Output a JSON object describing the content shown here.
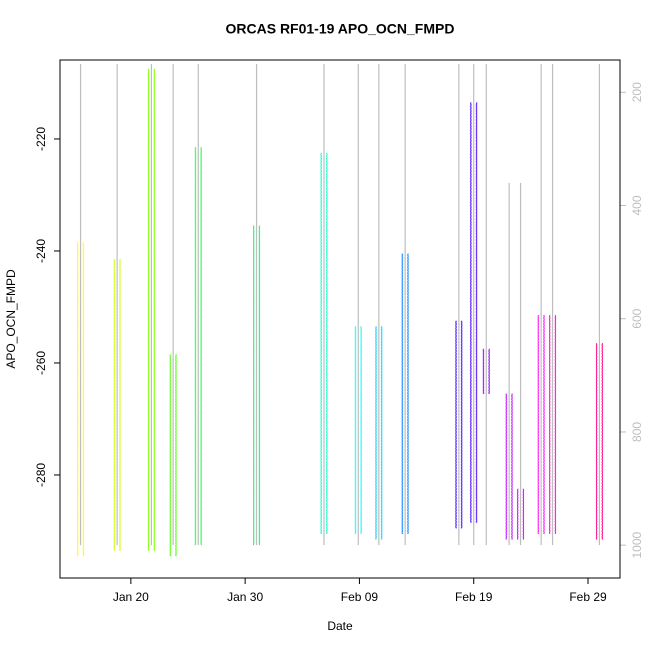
{
  "chart_data": {
    "type": "range",
    "title": "ORCAS RF01-19 APO_OCN_FMPD",
    "xlabel": "Date",
    "ylabel": "APO_OCN_FMPD",
    "xlim": [
      13.8,
      62.8
    ],
    "xticks": [
      {
        "value": 20,
        "label": "Jan 20"
      },
      {
        "value": 30,
        "label": "Jan 30"
      },
      {
        "value": 40,
        "label": "Feb 09"
      },
      {
        "value": 50,
        "label": "Feb 19"
      },
      {
        "value": 60,
        "label": "Feb 29"
      }
    ],
    "ylim": [
      -298.4,
      -205.9
    ],
    "yticks": [
      -220,
      -240,
      -260,
      -280
    ],
    "y2lim": [
      143,
      1058
    ],
    "y2ticks": [
      200,
      400,
      600,
      800,
      1000
    ],
    "y2_reversed": true,
    "series": [
      {
        "type": "range",
        "x": [
          15.6,
          18.8,
          21.8,
          23.7,
          25.9,
          31.0,
          36.9,
          39.9,
          41.7,
          44.0,
          48.7,
          50.0,
          51.1,
          53.1,
          54.1,
          55.9,
          56.9,
          61.0
        ],
        "low": [
          -294,
          -293,
          -293,
          -294,
          -292,
          -292,
          -290,
          -290,
          -291,
          -290,
          -289,
          -288,
          -265,
          -291,
          -291,
          -290,
          -290,
          -291
        ],
        "high": [
          -239,
          -242,
          -208,
          -259,
          -222,
          -236,
          -223,
          -254,
          -254,
          -241,
          -253,
          -214,
          -258,
          -266,
          -283,
          -252,
          -252,
          -257
        ],
        "colors": [
          "#ffff00",
          "#ccff00",
          "#80ff00",
          "#4cff00",
          "#19ff40",
          "#00ff66",
          "#00ffcc",
          "#00ffff",
          "#00ccff",
          "#0080ff",
          "#3300ff",
          "#4400ff",
          "#8800ff",
          "#bb00ff",
          "#cc00ff",
          "#ff00ff",
          "#ff00cc",
          "#ff0080"
        ]
      },
      {
        "type": "line",
        "axis": "y2",
        "color": "#bebebe",
        "x": [
          15.6,
          15.6,
          15.6,
          18.8,
          18.8,
          18.8,
          21.8,
          21.8,
          21.8,
          23.7,
          23.7,
          23.7,
          25.9,
          25.9,
          25.9,
          31.0,
          31.0,
          31.0,
          36.9,
          36.9,
          36.9,
          39.9,
          39.9,
          39.9,
          41.7,
          41.7,
          41.7,
          44.0,
          44.0,
          44.0,
          48.7,
          48.7,
          48.7,
          50.0,
          50.0,
          50.0,
          51.1,
          51.1,
          51.1,
          53.1,
          53.1,
          53.1,
          54.1,
          54.1,
          54.1,
          55.9,
          55.9,
          55.9,
          56.9,
          56.9,
          56.9,
          61.0,
          61.0,
          61.0
        ],
        "values": [
          150,
          1000,
          null,
          150,
          1000,
          null,
          150,
          1000,
          null,
          150,
          1000,
          null,
          150,
          1000,
          null,
          150,
          1000,
          null,
          150,
          1000,
          null,
          150,
          1000,
          null,
          150,
          1000,
          null,
          150,
          1000,
          null,
          150,
          1000,
          null,
          150,
          1000,
          null,
          150,
          1000,
          null,
          360,
          1000,
          null,
          360,
          1000,
          null,
          150,
          1000,
          null,
          150,
          1000,
          null,
          150,
          1000,
          null
        ]
      }
    ]
  }
}
